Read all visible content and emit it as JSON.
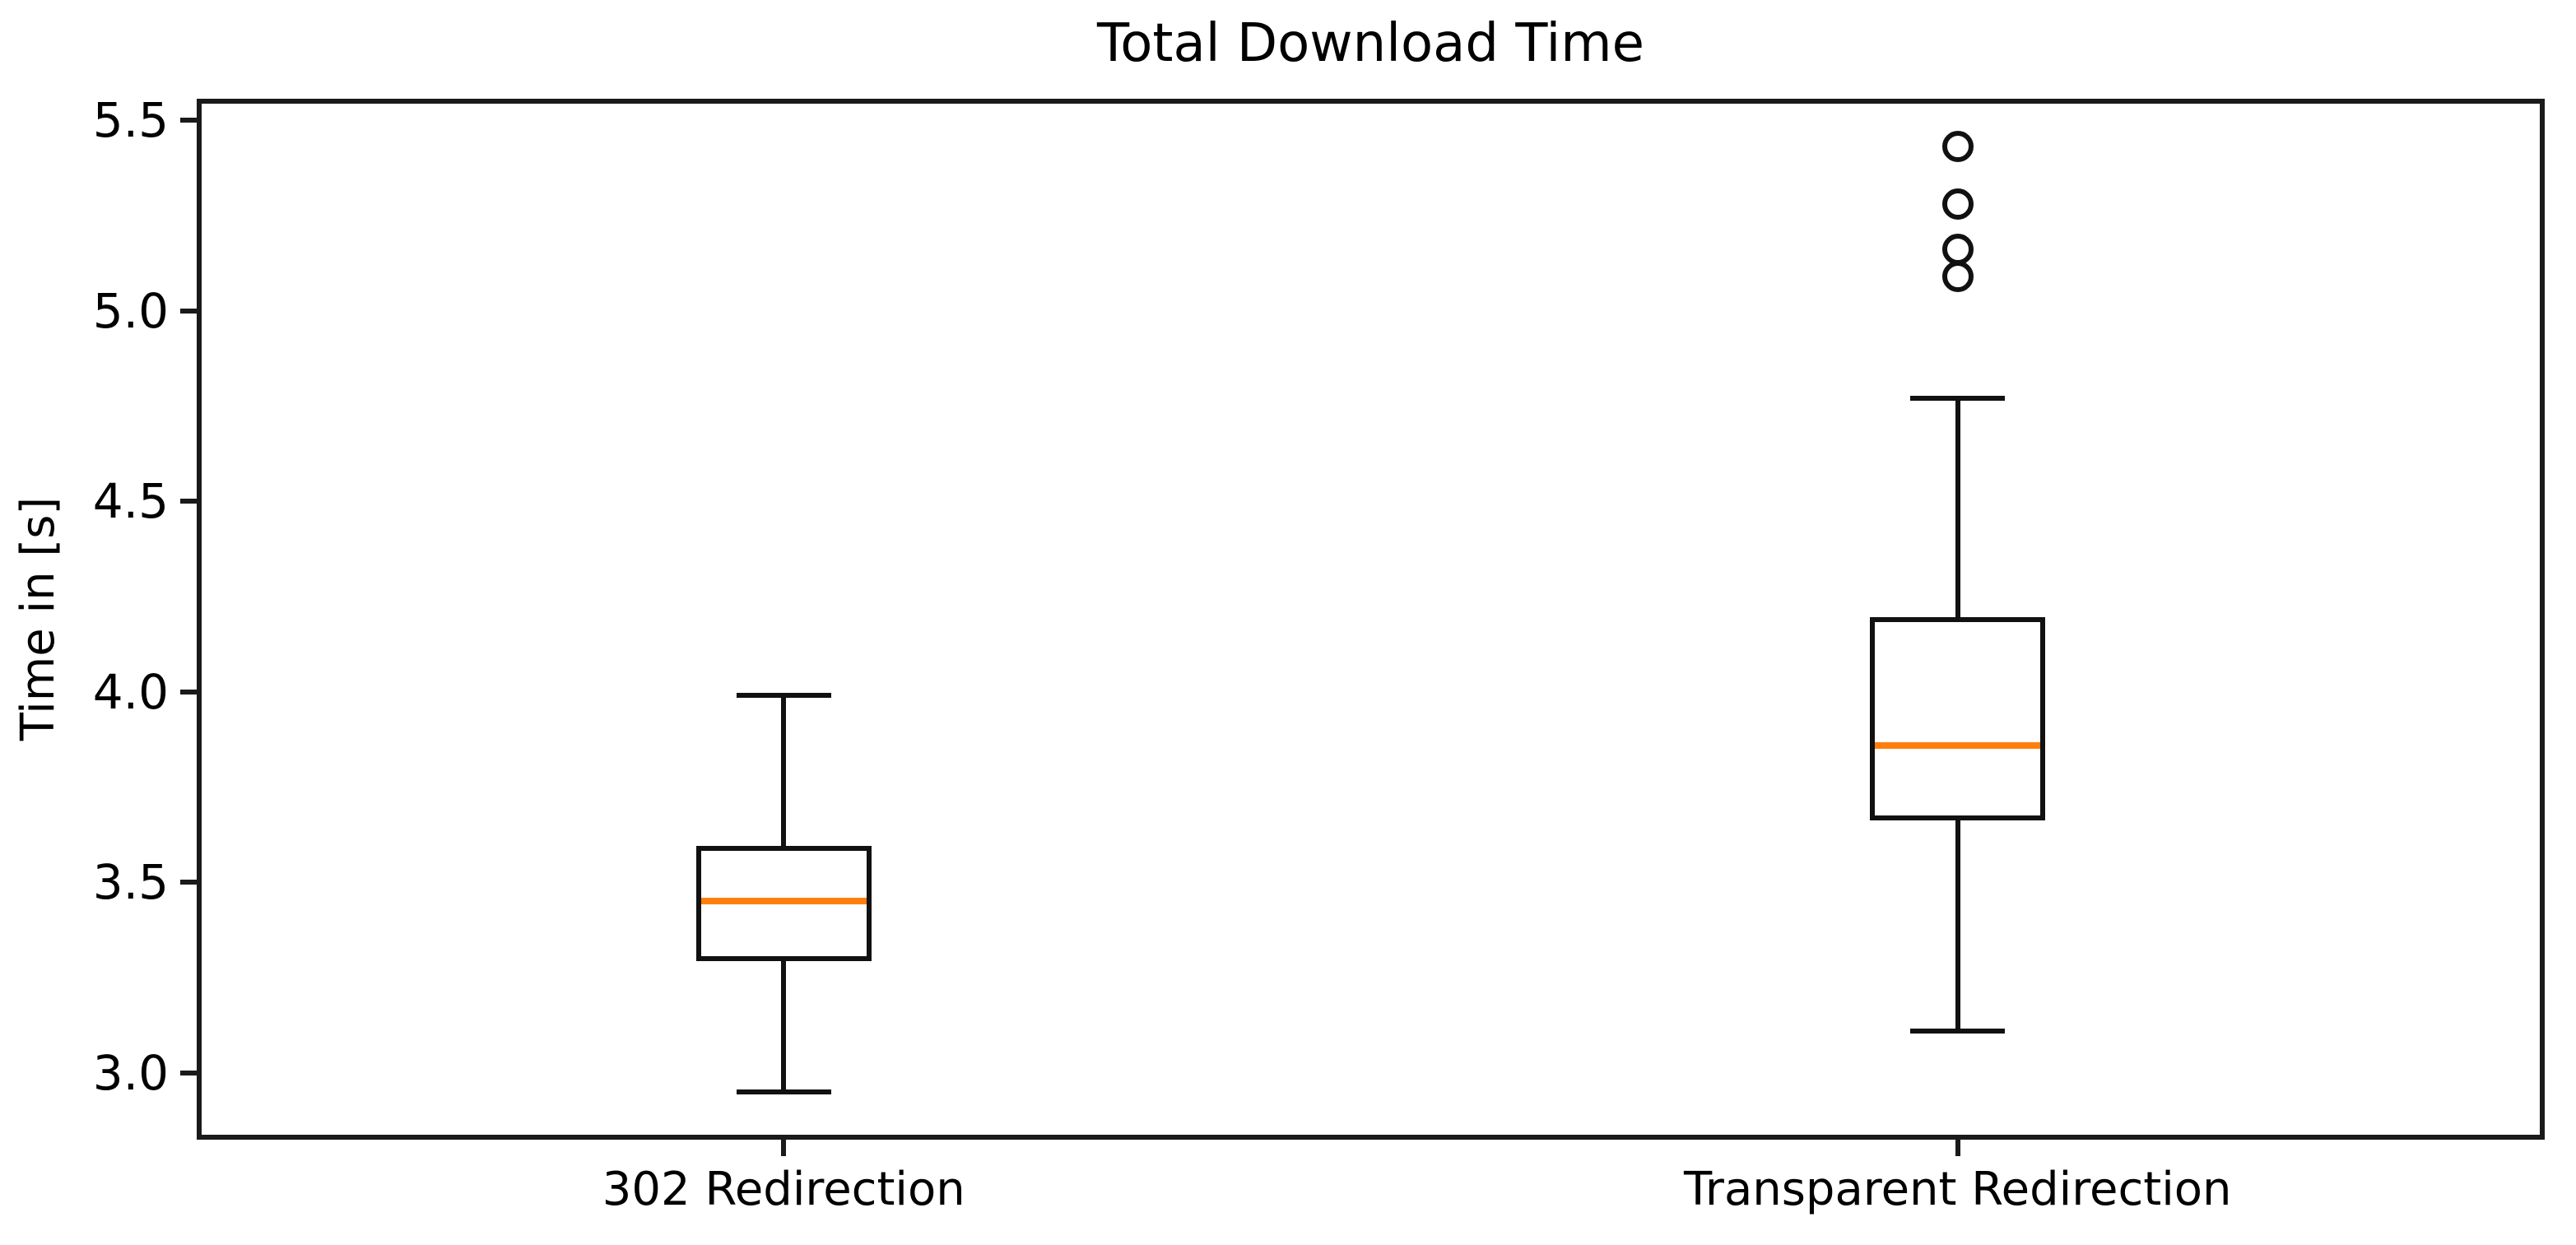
{
  "figure": {
    "background_color": "#ffffff",
    "text_color": "#000000",
    "line_color": "#111111",
    "median_color": "#ff7f0e"
  },
  "chart_data": {
    "type": "boxplot",
    "title": "Total Download Time",
    "xlabel": "",
    "ylabel": "Time in [s]",
    "categories": [
      "302 Redirection",
      "Transparent Redirection"
    ],
    "series": [
      {
        "name": "302 Redirection",
        "whisker_low": 2.95,
        "q1": 3.3,
        "median": 3.45,
        "q3": 3.59,
        "whisker_high": 3.99,
        "outliers": []
      },
      {
        "name": "Transparent Redirection",
        "whisker_low": 3.11,
        "q1": 3.67,
        "median": 3.86,
        "q3": 4.19,
        "whisker_high": 4.77,
        "outliers": [
          5.09,
          5.16,
          5.28,
          5.43
        ]
      }
    ],
    "ylim": [
      2.825,
      5.556
    ],
    "yticks": [
      3.0,
      3.5,
      4.0,
      4.5,
      5.0,
      5.5
    ],
    "ytick_format_decimals": 1,
    "grid": false,
    "legend": null
  }
}
